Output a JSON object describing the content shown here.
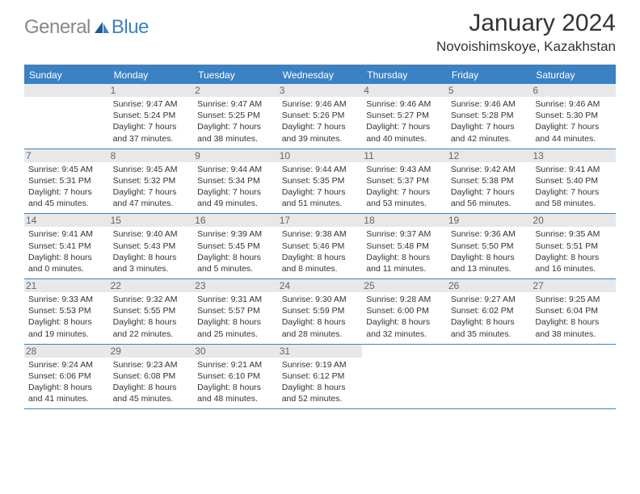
{
  "brand": {
    "part1": "General",
    "part2": "Blue"
  },
  "title": "January 2024",
  "location": "Novoishimskoye, Kazakhstan",
  "colors": {
    "accent": "#3b82c4",
    "header_text": "#ffffff",
    "day_header_bg": "#e8e8e8",
    "text": "#333333",
    "logo_gray": "#888888"
  },
  "weekdays": [
    "Sunday",
    "Monday",
    "Tuesday",
    "Wednesday",
    "Thursday",
    "Friday",
    "Saturday"
  ],
  "weeks": [
    [
      null,
      {
        "n": "1",
        "sr": "Sunrise: 9:47 AM",
        "ss": "Sunset: 5:24 PM",
        "d1": "Daylight: 7 hours",
        "d2": "and 37 minutes."
      },
      {
        "n": "2",
        "sr": "Sunrise: 9:47 AM",
        "ss": "Sunset: 5:25 PM",
        "d1": "Daylight: 7 hours",
        "d2": "and 38 minutes."
      },
      {
        "n": "3",
        "sr": "Sunrise: 9:46 AM",
        "ss": "Sunset: 5:26 PM",
        "d1": "Daylight: 7 hours",
        "d2": "and 39 minutes."
      },
      {
        "n": "4",
        "sr": "Sunrise: 9:46 AM",
        "ss": "Sunset: 5:27 PM",
        "d1": "Daylight: 7 hours",
        "d2": "and 40 minutes."
      },
      {
        "n": "5",
        "sr": "Sunrise: 9:46 AM",
        "ss": "Sunset: 5:28 PM",
        "d1": "Daylight: 7 hours",
        "d2": "and 42 minutes."
      },
      {
        "n": "6",
        "sr": "Sunrise: 9:46 AM",
        "ss": "Sunset: 5:30 PM",
        "d1": "Daylight: 7 hours",
        "d2": "and 44 minutes."
      }
    ],
    [
      {
        "n": "7",
        "sr": "Sunrise: 9:45 AM",
        "ss": "Sunset: 5:31 PM",
        "d1": "Daylight: 7 hours",
        "d2": "and 45 minutes."
      },
      {
        "n": "8",
        "sr": "Sunrise: 9:45 AM",
        "ss": "Sunset: 5:32 PM",
        "d1": "Daylight: 7 hours",
        "d2": "and 47 minutes."
      },
      {
        "n": "9",
        "sr": "Sunrise: 9:44 AM",
        "ss": "Sunset: 5:34 PM",
        "d1": "Daylight: 7 hours",
        "d2": "and 49 minutes."
      },
      {
        "n": "10",
        "sr": "Sunrise: 9:44 AM",
        "ss": "Sunset: 5:35 PM",
        "d1": "Daylight: 7 hours",
        "d2": "and 51 minutes."
      },
      {
        "n": "11",
        "sr": "Sunrise: 9:43 AM",
        "ss": "Sunset: 5:37 PM",
        "d1": "Daylight: 7 hours",
        "d2": "and 53 minutes."
      },
      {
        "n": "12",
        "sr": "Sunrise: 9:42 AM",
        "ss": "Sunset: 5:38 PM",
        "d1": "Daylight: 7 hours",
        "d2": "and 56 minutes."
      },
      {
        "n": "13",
        "sr": "Sunrise: 9:41 AM",
        "ss": "Sunset: 5:40 PM",
        "d1": "Daylight: 7 hours",
        "d2": "and 58 minutes."
      }
    ],
    [
      {
        "n": "14",
        "sr": "Sunrise: 9:41 AM",
        "ss": "Sunset: 5:41 PM",
        "d1": "Daylight: 8 hours",
        "d2": "and 0 minutes."
      },
      {
        "n": "15",
        "sr": "Sunrise: 9:40 AM",
        "ss": "Sunset: 5:43 PM",
        "d1": "Daylight: 8 hours",
        "d2": "and 3 minutes."
      },
      {
        "n": "16",
        "sr": "Sunrise: 9:39 AM",
        "ss": "Sunset: 5:45 PM",
        "d1": "Daylight: 8 hours",
        "d2": "and 5 minutes."
      },
      {
        "n": "17",
        "sr": "Sunrise: 9:38 AM",
        "ss": "Sunset: 5:46 PM",
        "d1": "Daylight: 8 hours",
        "d2": "and 8 minutes."
      },
      {
        "n": "18",
        "sr": "Sunrise: 9:37 AM",
        "ss": "Sunset: 5:48 PM",
        "d1": "Daylight: 8 hours",
        "d2": "and 11 minutes."
      },
      {
        "n": "19",
        "sr": "Sunrise: 9:36 AM",
        "ss": "Sunset: 5:50 PM",
        "d1": "Daylight: 8 hours",
        "d2": "and 13 minutes."
      },
      {
        "n": "20",
        "sr": "Sunrise: 9:35 AM",
        "ss": "Sunset: 5:51 PM",
        "d1": "Daylight: 8 hours",
        "d2": "and 16 minutes."
      }
    ],
    [
      {
        "n": "21",
        "sr": "Sunrise: 9:33 AM",
        "ss": "Sunset: 5:53 PM",
        "d1": "Daylight: 8 hours",
        "d2": "and 19 minutes."
      },
      {
        "n": "22",
        "sr": "Sunrise: 9:32 AM",
        "ss": "Sunset: 5:55 PM",
        "d1": "Daylight: 8 hours",
        "d2": "and 22 minutes."
      },
      {
        "n": "23",
        "sr": "Sunrise: 9:31 AM",
        "ss": "Sunset: 5:57 PM",
        "d1": "Daylight: 8 hours",
        "d2": "and 25 minutes."
      },
      {
        "n": "24",
        "sr": "Sunrise: 9:30 AM",
        "ss": "Sunset: 5:59 PM",
        "d1": "Daylight: 8 hours",
        "d2": "and 28 minutes."
      },
      {
        "n": "25",
        "sr": "Sunrise: 9:28 AM",
        "ss": "Sunset: 6:00 PM",
        "d1": "Daylight: 8 hours",
        "d2": "and 32 minutes."
      },
      {
        "n": "26",
        "sr": "Sunrise: 9:27 AM",
        "ss": "Sunset: 6:02 PM",
        "d1": "Daylight: 8 hours",
        "d2": "and 35 minutes."
      },
      {
        "n": "27",
        "sr": "Sunrise: 9:25 AM",
        "ss": "Sunset: 6:04 PM",
        "d1": "Daylight: 8 hours",
        "d2": "and 38 minutes."
      }
    ],
    [
      {
        "n": "28",
        "sr": "Sunrise: 9:24 AM",
        "ss": "Sunset: 6:06 PM",
        "d1": "Daylight: 8 hours",
        "d2": "and 41 minutes."
      },
      {
        "n": "29",
        "sr": "Sunrise: 9:23 AM",
        "ss": "Sunset: 6:08 PM",
        "d1": "Daylight: 8 hours",
        "d2": "and 45 minutes."
      },
      {
        "n": "30",
        "sr": "Sunrise: 9:21 AM",
        "ss": "Sunset: 6:10 PM",
        "d1": "Daylight: 8 hours",
        "d2": "and 48 minutes."
      },
      {
        "n": "31",
        "sr": "Sunrise: 9:19 AM",
        "ss": "Sunset: 6:12 PM",
        "d1": "Daylight: 8 hours",
        "d2": "and 52 minutes."
      },
      null,
      null,
      null
    ]
  ]
}
